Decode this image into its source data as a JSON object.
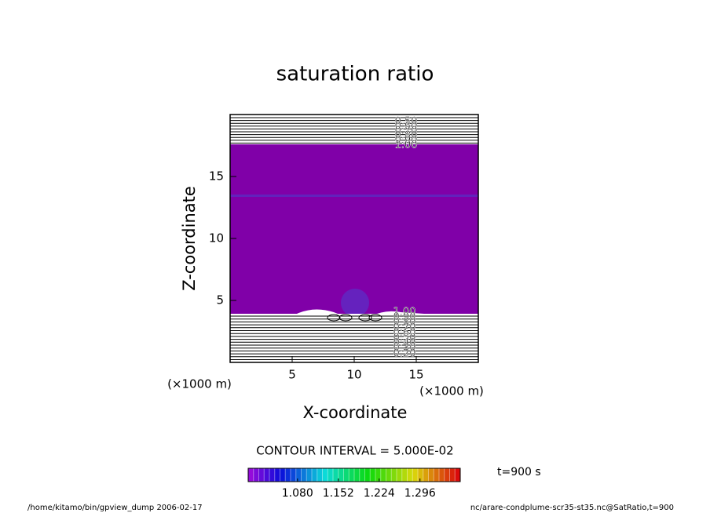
{
  "chart_data": {
    "type": "contour",
    "title": "saturation ratio",
    "xlabel": "X-coordinate",
    "ylabel": "Z-coordinate",
    "x_unit": "(×1000 m)",
    "y_unit": "(×1000 m)",
    "xlim": [
      0,
      20
    ],
    "ylim": [
      0,
      20
    ],
    "xticks": [
      5,
      10,
      15
    ],
    "yticks": [
      5,
      10,
      15
    ],
    "fill_color": "#8000a8",
    "contour_labels_top": [
      "0.50",
      "0.60",
      "0.70",
      "0.80",
      "0.90",
      "1.00"
    ],
    "contour_labels_bottom": [
      "1.00",
      "0.90",
      "0.80",
      "0.70",
      "0.60",
      "0.50",
      "0.40",
      "0.30",
      "0.20"
    ],
    "contour_interval": "CONTOUR INTERVAL = 5.000E-02",
    "colorbar": {
      "clim": [
        0.993,
        1.367
      ],
      "ticks": [
        {
          "value": 1.08,
          "label": "1.080"
        },
        1.152,
        1.224,
        1.296
      ]
    },
    "time_label": "t=900 s",
    "footer_left": "/home/kitamo/bin/gpview_dump  2006-02-17",
    "footer_right": "nc/arare-condplume-scr35-st35.nc@SatRatio,t=900"
  }
}
